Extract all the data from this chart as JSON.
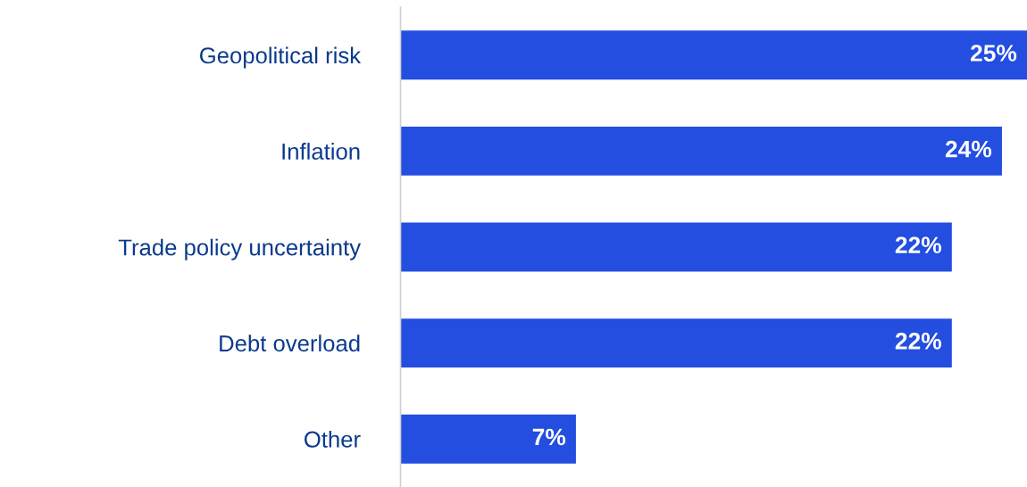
{
  "chart_data": {
    "type": "bar",
    "orientation": "horizontal",
    "categories": [
      "Geopolitical risk",
      "Inflation",
      "Trade policy uncertainty",
      "Debt overload",
      "Other"
    ],
    "values": [
      25,
      24,
      22,
      22,
      7
    ],
    "value_labels": [
      "25%",
      "24%",
      "22%",
      "22%",
      "7%"
    ],
    "color": "#234ee0",
    "grid": false,
    "legend": false
  }
}
